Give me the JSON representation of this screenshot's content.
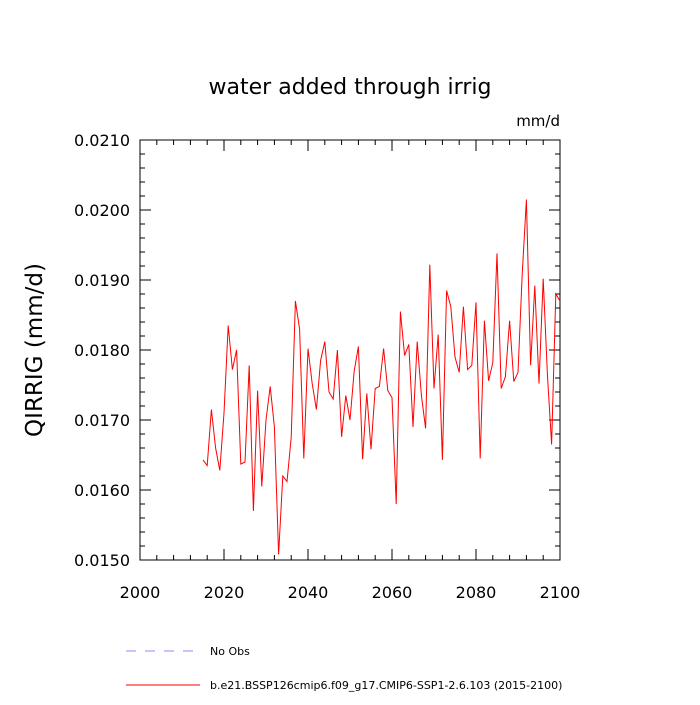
{
  "chart_data": {
    "type": "line",
    "title": "water added through irrig",
    "units_label": "mm/d",
    "xlabel": "",
    "ylabel": "QIRRIG  (mm/d)",
    "xlim": [
      2000,
      2100
    ],
    "ylim": [
      0.015,
      0.021
    ],
    "x_ticks": [
      2000,
      2020,
      2040,
      2060,
      2080,
      2100
    ],
    "x_tick_labels": [
      "2000",
      "2020",
      "2040",
      "2060",
      "2080",
      "2100"
    ],
    "y_ticks": [
      0.015,
      0.016,
      0.017,
      0.018,
      0.019,
      0.02,
      0.021
    ],
    "y_tick_labels": [
      "0.0150",
      "0.0160",
      "0.0170",
      "0.0180",
      "0.0190",
      "0.0200",
      "0.0210"
    ],
    "legend": [
      {
        "label": "No Obs",
        "color": "#8c8cff",
        "dash": true
      },
      {
        "label": "b.e21.BSSP126cmip6.f09_g17.CMIP6-SSP1-2.6.103 (2015-2100)",
        "color": "#ff0000",
        "dash": false
      }
    ],
    "series": [
      {
        "name": "b.e21.BSSP126cmip6.f09_g17.CMIP6-SSP1-2.6.103 (2015-2100)",
        "color": "#ff0000",
        "x": [
          2015,
          2016,
          2017,
          2018,
          2019,
          2020,
          2021,
          2022,
          2023,
          2024,
          2025,
          2026,
          2027,
          2028,
          2029,
          2030,
          2031,
          2032,
          2033,
          2034,
          2035,
          2036,
          2037,
          2038,
          2039,
          2040,
          2041,
          2042,
          2043,
          2044,
          2045,
          2046,
          2047,
          2048,
          2049,
          2050,
          2051,
          2052,
          2053,
          2054,
          2055,
          2056,
          2057,
          2058,
          2059,
          2060,
          2061,
          2062,
          2063,
          2064,
          2065,
          2066,
          2067,
          2068,
          2069,
          2070,
          2071,
          2072,
          2073,
          2074,
          2075,
          2076,
          2077,
          2078,
          2079,
          2080,
          2081,
          2082,
          2083,
          2084,
          2085,
          2086,
          2087,
          2088,
          2089,
          2090,
          2091,
          2092,
          2093,
          2094,
          2095,
          2096,
          2097,
          2098,
          2099,
          2100
        ],
        "y": [
          0.01643,
          0.01635,
          0.01715,
          0.0166,
          0.01628,
          0.0171,
          0.01835,
          0.01772,
          0.018,
          0.01637,
          0.0164,
          0.01778,
          0.0157,
          0.01742,
          0.01605,
          0.017,
          0.01748,
          0.0169,
          0.01508,
          0.0162,
          0.01612,
          0.01675,
          0.0187,
          0.0183,
          0.01645,
          0.01802,
          0.01752,
          0.01715,
          0.01785,
          0.01812,
          0.0174,
          0.0173,
          0.018,
          0.01676,
          0.01735,
          0.017,
          0.0177,
          0.01805,
          0.01644,
          0.01738,
          0.01658,
          0.01745,
          0.01748,
          0.01802,
          0.01742,
          0.01732,
          0.0158,
          0.01855,
          0.01792,
          0.01808,
          0.0169,
          0.01812,
          0.01735,
          0.01688,
          0.01922,
          0.01745,
          0.01822,
          0.01643,
          0.01885,
          0.01862,
          0.0179,
          0.01768,
          0.01862,
          0.01772,
          0.01778,
          0.01868,
          0.01645,
          0.01842,
          0.01756,
          0.01782,
          0.01938,
          0.01745,
          0.01762,
          0.01842,
          0.01755,
          0.01768,
          0.01908,
          0.02015,
          0.01778,
          0.01892,
          0.01752,
          0.01902,
          0.01765,
          0.01665,
          0.0188,
          0.0187
        ]
      }
    ]
  }
}
